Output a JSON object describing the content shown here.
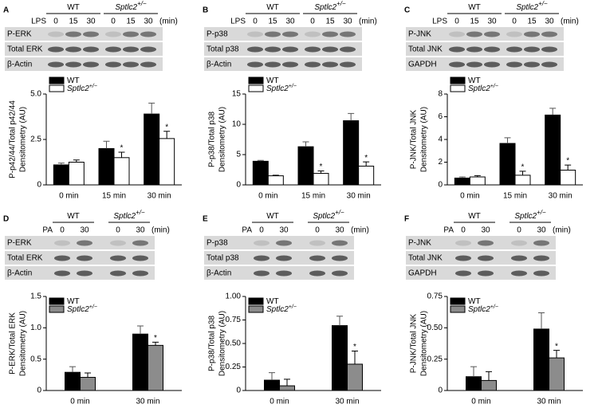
{
  "panels": [
    {
      "letter": "A",
      "blot": {
        "groups": [
          {
            "name": "WT"
          },
          {
            "name": "Sptlc2",
            "sup": "+/−"
          }
        ],
        "treatment": "LPS",
        "lanes": [
          "0",
          "15",
          "30",
          "0",
          "15",
          "30"
        ],
        "unit": "(min)",
        "rows": [
          "P-ERK",
          "Total ERK",
          "β-Actin"
        ]
      }
    },
    {
      "letter": "B",
      "blot": {
        "groups": [
          {
            "name": "WT"
          },
          {
            "name": "Sptlc2",
            "sup": "+/−"
          }
        ],
        "treatment": "LPS",
        "lanes": [
          "0",
          "15",
          "30",
          "0",
          "15",
          "30"
        ],
        "unit": "(min)",
        "rows": [
          "P-p38",
          "Total p38",
          "β-Actin"
        ]
      }
    },
    {
      "letter": "C",
      "blot": {
        "groups": [
          {
            "name": "WT"
          },
          {
            "name": "Sptlc2",
            "sup": "+/−"
          }
        ],
        "treatment": "LPS",
        "lanes": [
          "0",
          "15",
          "30",
          "0",
          "15",
          "30"
        ],
        "unit": "(min)",
        "rows": [
          "P-JNK",
          "Total JNK",
          "GAPDH"
        ]
      }
    },
    {
      "letter": "D",
      "blot": {
        "groups": [
          {
            "name": "WT"
          },
          {
            "name": "Sptlc2",
            "sup": "+/−"
          }
        ],
        "treatment": "PA",
        "lanes": [
          "0",
          "30",
          "0",
          "30"
        ],
        "unit": "(min)",
        "rows": [
          "P-ERK",
          "Total ERK",
          "β-Actin"
        ]
      }
    },
    {
      "letter": "E",
      "blot": {
        "groups": [
          {
            "name": "WT"
          },
          {
            "name": "Sptlc2",
            "sup": "+/−"
          }
        ],
        "treatment": "PA",
        "lanes": [
          "0",
          "30",
          "0",
          "30"
        ],
        "unit": "(min)",
        "rows": [
          "P-p38",
          "Total p38",
          "β-Actin"
        ]
      }
    },
    {
      "letter": "F",
      "blot": {
        "groups": [
          {
            "name": "WT"
          },
          {
            "name": "Sptlc2",
            "sup": "+/−"
          }
        ],
        "treatment": "PA",
        "lanes": [
          "0",
          "30",
          "0",
          "30"
        ],
        "unit": "(min)",
        "rows": [
          "P-JNK",
          "Total JNK",
          "GAPDH"
        ]
      }
    }
  ],
  "chart_data": [
    {
      "type": "bar",
      "y_label": [
        "P-p42/44/Total p42/44",
        "Densitometry (AU)"
      ],
      "categories": [
        "0 min",
        "15 min",
        "30 min"
      ],
      "series": [
        {
          "name": "WT",
          "color": "#000000",
          "values": [
            1.1,
            2.0,
            3.9
          ],
          "errors": [
            0.1,
            0.4,
            0.6
          ],
          "significance": [
            null,
            null,
            null
          ]
        },
        {
          "name": "Sptlc2",
          "name_sup": "+/−",
          "color": "#ffffff",
          "values": [
            1.25,
            1.5,
            2.55
          ],
          "errors": [
            0.12,
            0.3,
            0.4
          ],
          "significance": [
            null,
            "*",
            "*"
          ]
        }
      ],
      "ylim": [
        0,
        5
      ],
      "yticks": [
        0,
        2.5,
        {
          "value": 5,
          "label": "5.0"
        }
      ]
    },
    {
      "type": "bar",
      "y_label": [
        "P-p38/Total p38",
        "Densitometry (AU)"
      ],
      "categories": [
        "0 min",
        "15 min",
        "30 min"
      ],
      "series": [
        {
          "name": "WT",
          "color": "#000000",
          "values": [
            3.9,
            6.3,
            10.6
          ],
          "errors": [
            0.15,
            0.8,
            1.2
          ],
          "significance": [
            null,
            null,
            null
          ]
        },
        {
          "name": "Sptlc2",
          "name_sup": "+/−",
          "color": "#ffffff",
          "values": [
            1.5,
            1.9,
            3.1
          ],
          "errors": [
            0.1,
            0.4,
            0.7
          ],
          "significance": [
            null,
            "*",
            "*"
          ]
        }
      ],
      "ylim": [
        0,
        15
      ],
      "yticks": [
        0,
        5,
        10,
        15
      ]
    },
    {
      "type": "bar",
      "y_label": [
        "P-JNK/Total JNK",
        "Densitometry (AU)"
      ],
      "categories": [
        "0 min",
        "15 min",
        "30 min"
      ],
      "series": [
        {
          "name": "WT",
          "color": "#000000",
          "values": [
            0.6,
            3.65,
            6.15
          ],
          "errors": [
            0.1,
            0.5,
            0.6
          ],
          "significance": [
            null,
            null,
            null
          ]
        },
        {
          "name": "Sptlc2",
          "name_sup": "+/−",
          "color": "#ffffff",
          "values": [
            0.7,
            0.85,
            1.3
          ],
          "errors": [
            0.12,
            0.35,
            0.45
          ],
          "significance": [
            null,
            "*",
            "*"
          ]
        }
      ],
      "ylim": [
        0,
        8
      ],
      "yticks": [
        0,
        2,
        4,
        6,
        8
      ]
    },
    {
      "type": "bar",
      "y_label": [
        "P-ERK/Total ERK",
        "Densitometry (AU)"
      ],
      "categories": [
        "0 min",
        "30 min"
      ],
      "series": [
        {
          "name": "WT",
          "color": "#000000",
          "values": [
            0.29,
            0.9
          ],
          "errors": [
            0.09,
            0.13
          ],
          "significance": [
            null,
            null
          ]
        },
        {
          "name": "Sptlc2",
          "name_sup": "+/−",
          "color": "#8c8c8c",
          "values": [
            0.21,
            0.72
          ],
          "errors": [
            0.07,
            0.05
          ],
          "significance": [
            null,
            "*"
          ]
        }
      ],
      "ylim": [
        0,
        1.5
      ],
      "yticks": [
        0,
        0.5,
        {
          "value": 1,
          "label": "1.0"
        },
        1.5
      ]
    },
    {
      "type": "bar",
      "y_label": [
        "P-p38/Total p38",
        "Densitometry (AU)"
      ],
      "categories": [
        "0 min",
        "30 min"
      ],
      "series": [
        {
          "name": "WT",
          "color": "#000000",
          "values": [
            0.11,
            0.69
          ],
          "errors": [
            0.08,
            0.1
          ],
          "significance": [
            null,
            null
          ]
        },
        {
          "name": "Sptlc2",
          "name_sup": "+/−",
          "color": "#8c8c8c",
          "values": [
            0.05,
            0.28
          ],
          "errors": [
            0.07,
            0.14
          ],
          "significance": [
            null,
            "*"
          ]
        }
      ],
      "ylim": [
        0,
        1
      ],
      "yticks": [
        0,
        0.25,
        {
          "value": 0.5,
          "label": "0.50"
        },
        0.75,
        {
          "value": 1,
          "label": "1.00"
        }
      ]
    },
    {
      "type": "bar",
      "y_label": [
        "P-JNK/Total JNK",
        "Densitometry (AU)"
      ],
      "categories": [
        "0 min",
        "30 min"
      ],
      "series": [
        {
          "name": "WT",
          "color": "#000000",
          "values": [
            0.11,
            0.49
          ],
          "errors": [
            0.08,
            0.13
          ],
          "significance": [
            null,
            null
          ]
        },
        {
          "name": "Sptlc2",
          "name_sup": "+/−",
          "color": "#8c8c8c",
          "values": [
            0.08,
            0.26
          ],
          "errors": [
            0.07,
            0.06
          ],
          "significance": [
            null,
            "*"
          ]
        }
      ],
      "ylim": [
        0,
        0.75
      ],
      "yticks": [
        0,
        0.25,
        {
          "value": 0.5,
          "label": "0.50"
        },
        0.75
      ]
    }
  ]
}
